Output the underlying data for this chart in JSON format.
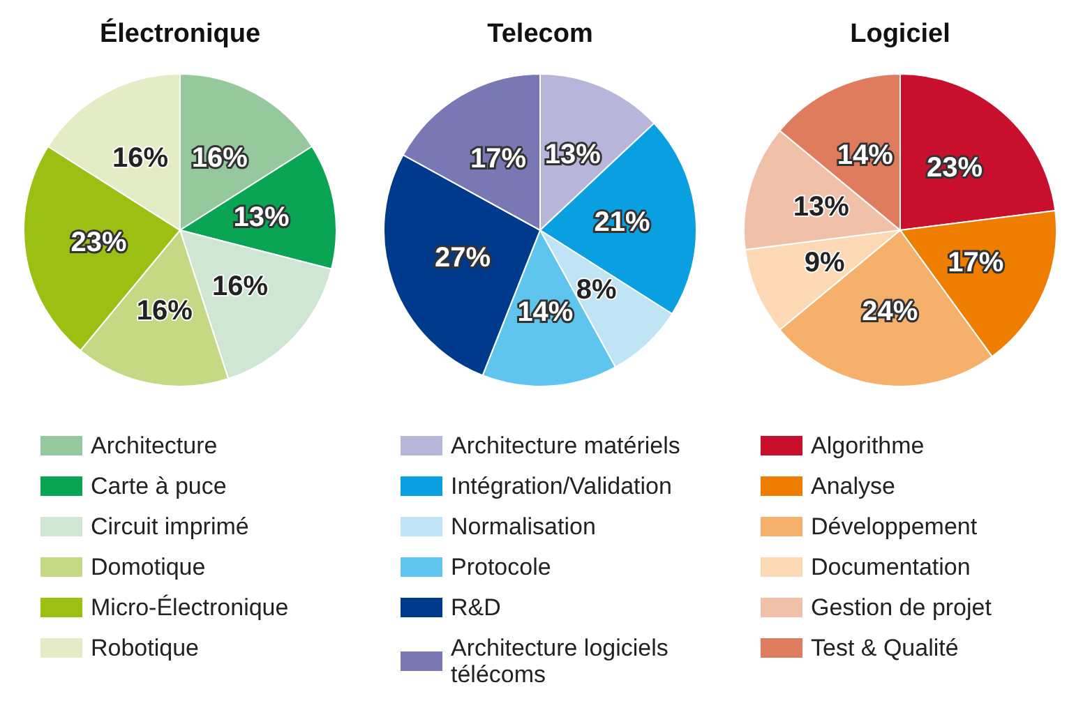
{
  "chart_data": [
    {
      "type": "pie",
      "title": "Électronique",
      "legend": "bottom",
      "categories": [
        "Architecture",
        "Carte à puce",
        "Circuit imprimé",
        "Domotique",
        "Micro-Électronique",
        "Robotique"
      ],
      "values": [
        16,
        13,
        16,
        16,
        23,
        16
      ],
      "value_labels": [
        "16%",
        "13%",
        "16%",
        "16%",
        "23%",
        "16%"
      ],
      "colors": [
        "#95c89c",
        "#0aa455",
        "#cfe6d2",
        "#c5d985",
        "#9bbf12",
        "#e4ecc6"
      ]
    },
    {
      "type": "pie",
      "title": "Telecom",
      "legend": "bottom",
      "categories": [
        "Architecture matériels",
        "Intégration/Validation",
        "Normalisation",
        "Protocole",
        "R&D",
        "Architecture logiciels télécoms"
      ],
      "values": [
        13,
        21,
        8,
        14,
        27,
        17
      ],
      "value_labels": [
        "13%",
        "21%",
        "8%",
        "14%",
        "27%",
        "17%"
      ],
      "colors": [
        "#b8b5da",
        "#0a9fe0",
        "#bee4f6",
        "#5fc5ee",
        "#003a8c",
        "#7a78b4"
      ]
    },
    {
      "type": "pie",
      "title": "Logiciel",
      "legend": "bottom",
      "categories": [
        "Algorithme",
        "Analyse",
        "Développement",
        "Documentation",
        "Gestion de projet",
        "Test & Qualité"
      ],
      "values": [
        23,
        17,
        24,
        9,
        13,
        14
      ],
      "value_labels": [
        "23%",
        "17%",
        "24%",
        "9%",
        "13%",
        "14%"
      ],
      "colors": [
        "#c8102e",
        "#ee7d00",
        "#f5b06c",
        "#fcd8b4",
        "#f0c0a8",
        "#e07c5e"
      ]
    }
  ]
}
